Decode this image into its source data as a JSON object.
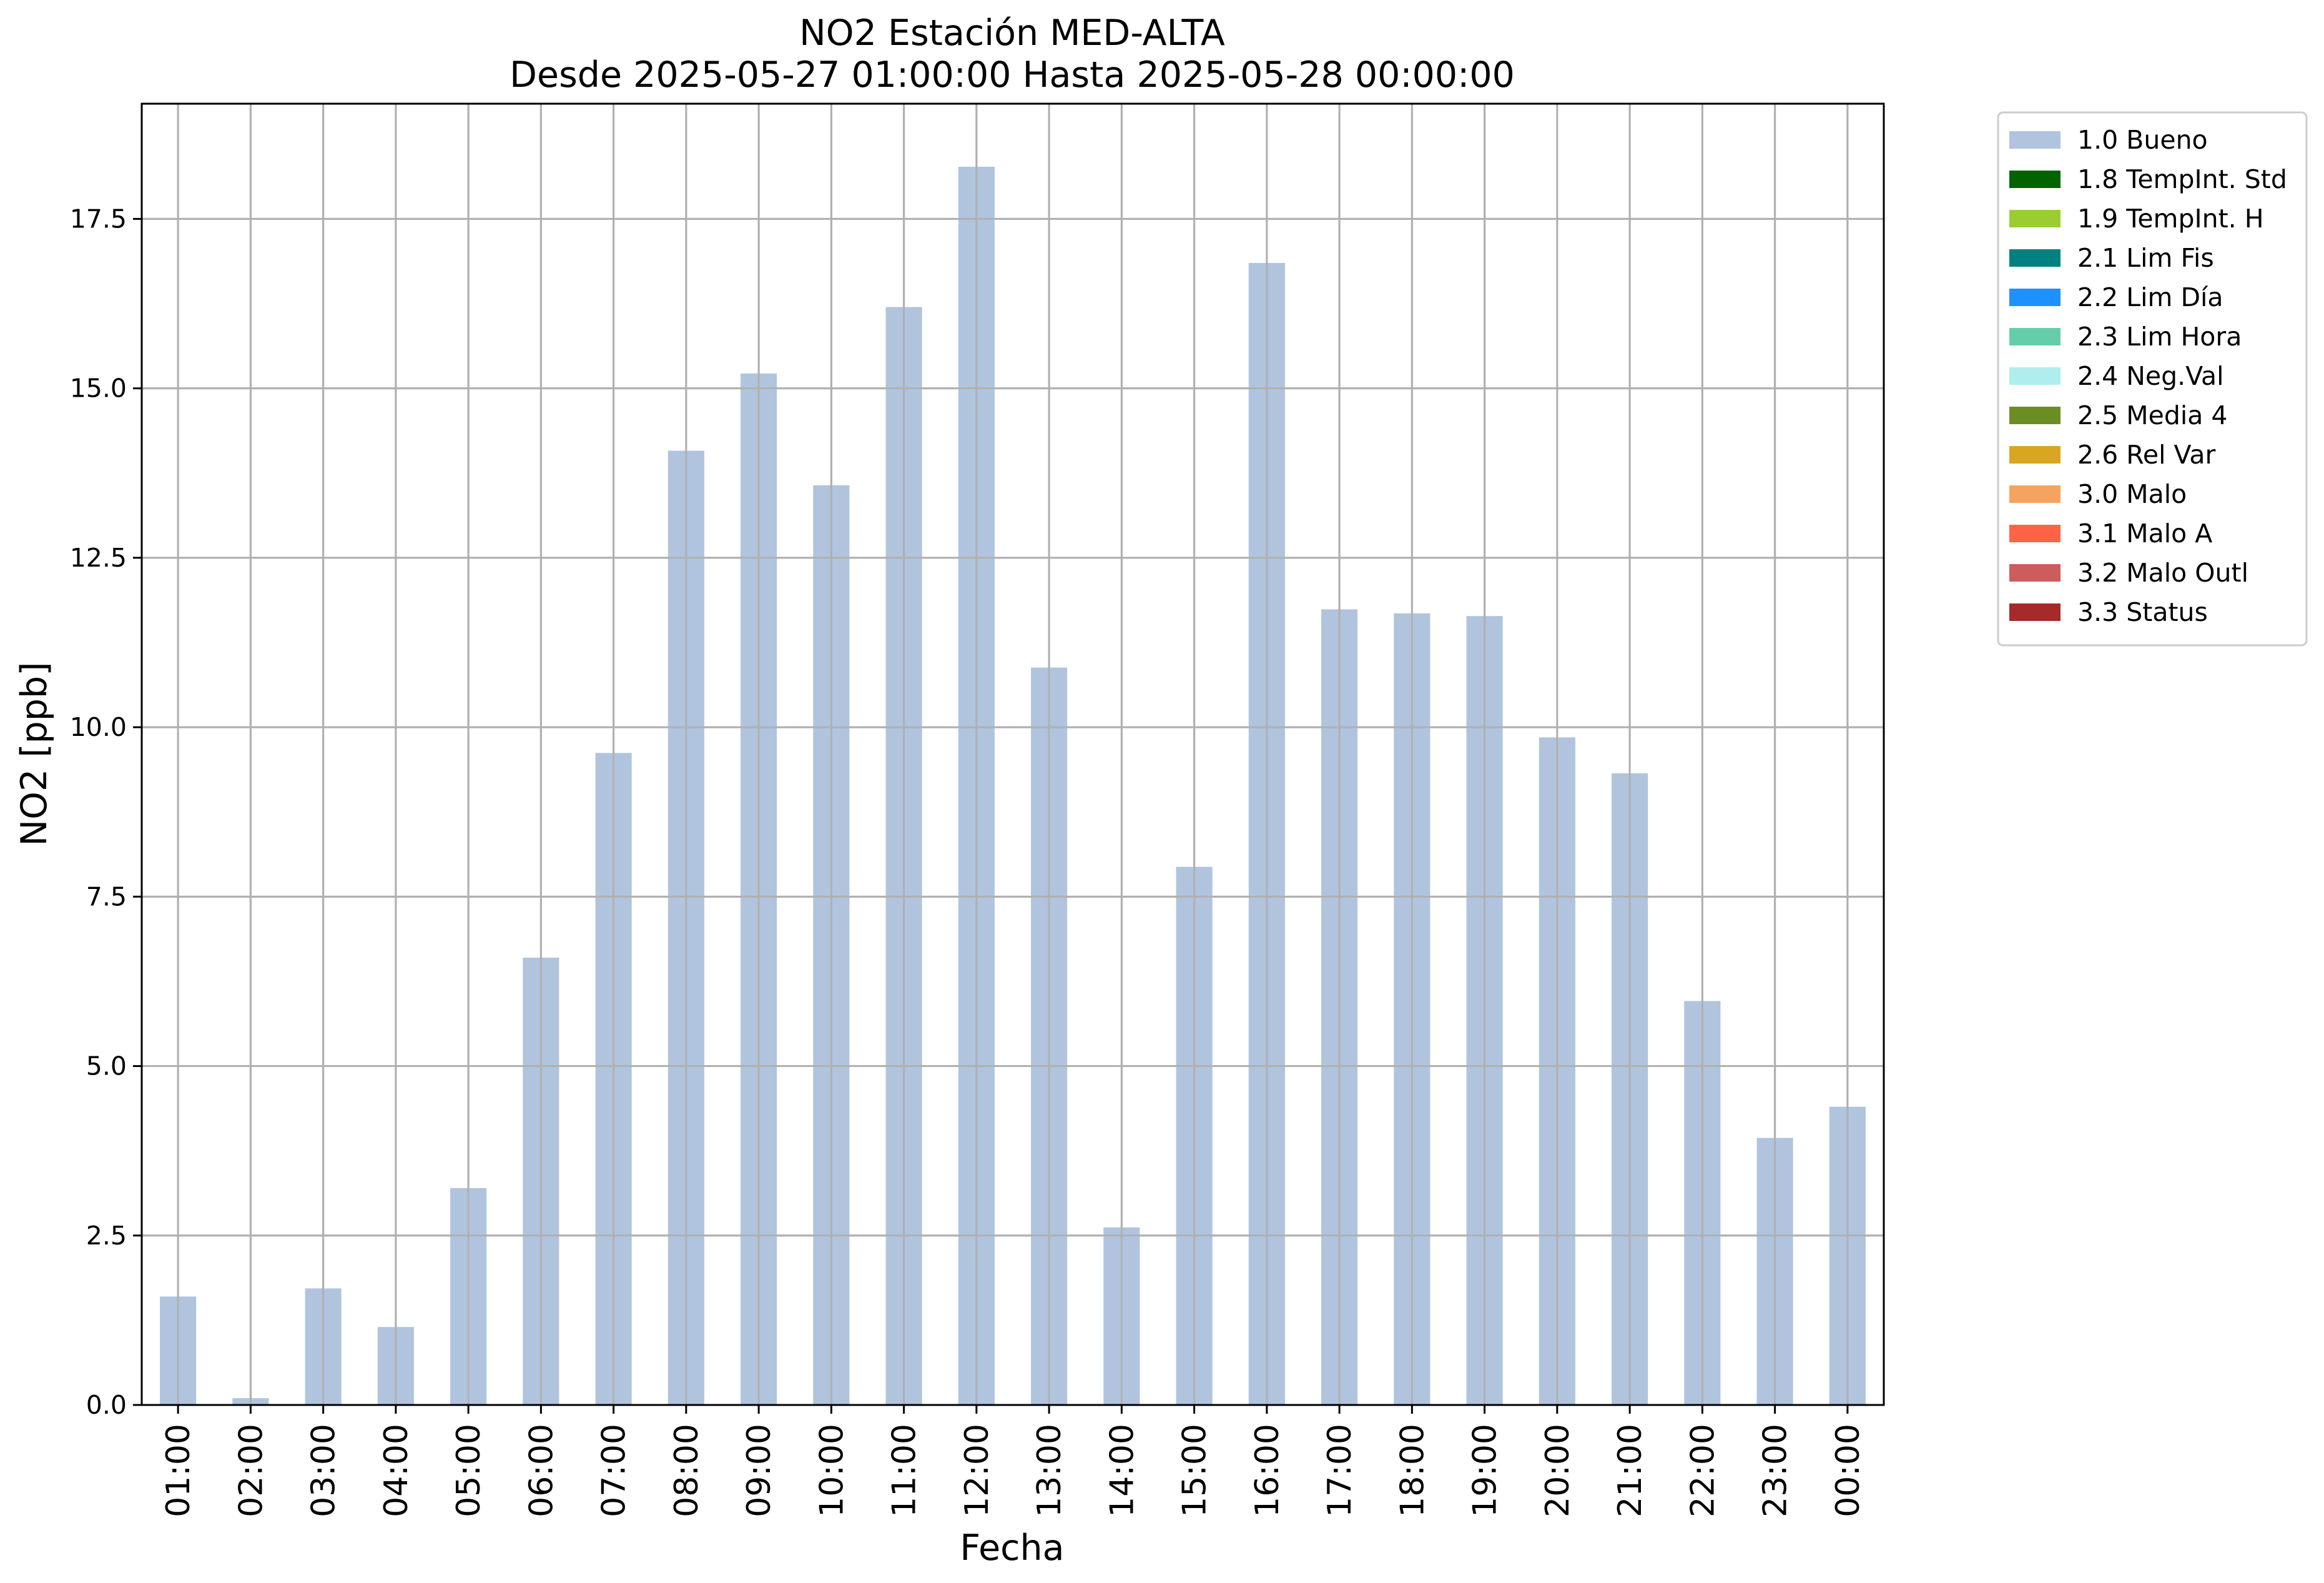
{
  "chart_data": {
    "type": "bar",
    "title_line1": "NO2 Estación MED-ALTA",
    "title_line2": "Desde 2025-05-27 01:00:00 Hasta 2025-05-28 00:00:00",
    "xlabel": "Fecha",
    "ylabel": "NO2 [ppb]",
    "categories": [
      "01:00",
      "02:00",
      "03:00",
      "04:00",
      "05:00",
      "06:00",
      "07:00",
      "08:00",
      "09:00",
      "10:00",
      "11:00",
      "12:00",
      "13:00",
      "14:00",
      "15:00",
      "16:00",
      "17:00",
      "18:00",
      "19:00",
      "20:00",
      "21:00",
      "22:00",
      "23:00",
      "00:00"
    ],
    "series": [
      {
        "name": "1.0 Bueno",
        "color": "#b0c4de",
        "values": [
          1.6,
          0.1,
          1.72,
          1.15,
          3.2,
          6.6,
          9.62,
          14.08,
          15.22,
          13.57,
          16.2,
          18.27,
          10.88,
          2.62,
          7.94,
          16.85,
          11.74,
          11.68,
          11.64,
          9.85,
          9.32,
          5.96,
          3.94,
          4.4
        ]
      }
    ],
    "ylim": [
      0,
      19.2
    ],
    "yticks": [
      0.0,
      2.5,
      5.0,
      7.5,
      10.0,
      12.5,
      15.0,
      17.5
    ],
    "ytick_labels": [
      "0.0",
      "2.5",
      "5.0",
      "7.5",
      "10.0",
      "12.5",
      "15.0",
      "17.5"
    ],
    "grid": true,
    "legend_position": "outside-top-right",
    "legend": [
      {
        "label": "1.0 Bueno",
        "color": "#b0c4de"
      },
      {
        "label": "1.8 TempInt. Std",
        "color": "#006400"
      },
      {
        "label": "1.9 TempInt. H",
        "color": "#9acd32"
      },
      {
        "label": "2.1 Lim Fis",
        "color": "#008080"
      },
      {
        "label": "2.2 Lim Día",
        "color": "#1e90ff"
      },
      {
        "label": "2.3 Lim Hora",
        "color": "#66cdaa"
      },
      {
        "label": "2.4 Neg.Val",
        "color": "#afeeee"
      },
      {
        "label": "2.5 Media 4",
        "color": "#6b8e23"
      },
      {
        "label": "2.6 Rel Var",
        "color": "#daa520"
      },
      {
        "label": "3.0 Malo",
        "color": "#f4a460"
      },
      {
        "label": "3.1 Malo A",
        "color": "#ff6347"
      },
      {
        "label": "3.2 Malo Outl",
        "color": "#cd5c5c"
      },
      {
        "label": "3.3 Status",
        "color": "#a52a2a"
      }
    ]
  }
}
